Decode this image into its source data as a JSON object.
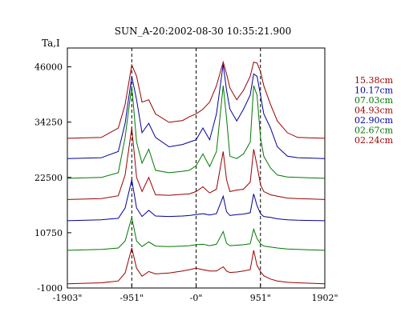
{
  "chart_data": {
    "type": "line",
    "title": "SUN_A-20:2002-08-30 10:35:21.900",
    "ylabel": "Ta,I",
    "xlabel": "",
    "xlim": [
      -1903,
      1902
    ],
    "ylim": [
      -1000,
      50000
    ],
    "x_ticks": [
      -1903,
      -951,
      0,
      951,
      1902
    ],
    "x_tick_labels": [
      "-1903\"",
      "-951\"",
      "-0\"",
      "951\"",
      "1902\""
    ],
    "y_ticks": [
      46000,
      34250,
      22500,
      10750,
      -1000
    ],
    "y_tick_labels": [
      "46000",
      "34250",
      "22500",
      "10750",
      "-1000"
    ],
    "vertical_markers": [
      -951,
      0,
      951
    ],
    "x": [
      -1903,
      -1400,
      -1150,
      -1050,
      -951,
      -880,
      -800,
      -700,
      -600,
      -400,
      -200,
      -100,
      0,
      100,
      200,
      300,
      400,
      450,
      500,
      600,
      700,
      800,
      850,
      900,
      951,
      1000,
      1100,
      1200,
      1350,
      1500,
      1902
    ],
    "grid": false,
    "legend_position": "right",
    "series": [
      {
        "name": "15.38cm",
        "color": "#990000",
        "values": [
          30800,
          31000,
          33000,
          38000,
          46400,
          44000,
          38500,
          39000,
          36000,
          34200,
          34600,
          35400,
          36000,
          37000,
          38500,
          42000,
          47000,
          44500,
          41500,
          39000,
          41000,
          44000,
          47000,
          46800,
          45000,
          42000,
          38000,
          34500,
          32000,
          31000,
          30800
        ]
      },
      {
        "name": "10.17cm",
        "color": "#000099",
        "values": [
          26500,
          26700,
          28000,
          34000,
          44000,
          39000,
          32000,
          34000,
          31000,
          29000,
          29500,
          30000,
          30500,
          33000,
          30500,
          36000,
          46500,
          41000,
          37000,
          34500,
          37000,
          40000,
          44500,
          44000,
          40000,
          36000,
          33000,
          29000,
          27000,
          26700,
          26500
        ]
      },
      {
        "name": "07.03cm",
        "color": "#007700",
        "values": [
          22300,
          22500,
          23500,
          31000,
          42000,
          30000,
          25500,
          28500,
          24000,
          23500,
          23800,
          24000,
          25000,
          27500,
          24800,
          28000,
          42000,
          35000,
          27000,
          26500,
          27500,
          30000,
          42000,
          40000,
          31000,
          27000,
          24500,
          23000,
          22600,
          22500,
          22300
        ]
      },
      {
        "name": "04.93cm",
        "color": "#990000",
        "values": [
          17800,
          18000,
          18600,
          23000,
          33000,
          22500,
          19500,
          22500,
          18800,
          18700,
          18900,
          19000,
          19500,
          20500,
          19200,
          20000,
          28000,
          22000,
          19500,
          19800,
          20000,
          21500,
          28500,
          25000,
          21000,
          19500,
          18800,
          18500,
          18100,
          18000,
          17800
        ]
      },
      {
        "name": "02.90cm",
        "color": "#000099",
        "values": [
          13300,
          13500,
          13800,
          16000,
          22000,
          16000,
          14200,
          15500,
          14300,
          14200,
          14300,
          14400,
          14600,
          14800,
          14500,
          14800,
          18500,
          15200,
          14400,
          14600,
          14700,
          15000,
          19000,
          16500,
          14800,
          14200,
          14000,
          13700,
          13500,
          13400,
          13300
        ]
      },
      {
        "name": "02.67cm",
        "color": "#007700",
        "values": [
          7000,
          7200,
          7500,
          9000,
          14000,
          9000,
          7800,
          8800,
          7900,
          7800,
          7900,
          8000,
          8200,
          8300,
          8000,
          8300,
          11000,
          8500,
          8000,
          8100,
          8200,
          8400,
          11500,
          9500,
          8400,
          7900,
          7700,
          7500,
          7300,
          7200,
          7000
        ]
      },
      {
        "name": "02.24cm",
        "color": "#990000",
        "values": [
          -100,
          100,
          500,
          2200,
          7500,
          3200,
          1500,
          2500,
          2000,
          2200,
          2600,
          2900,
          3200,
          2900,
          2600,
          2600,
          3500,
          2600,
          2300,
          2400,
          2600,
          2900,
          7000,
          3800,
          2500,
          1600,
          900,
          500,
          200,
          100,
          -100
        ]
      }
    ]
  }
}
